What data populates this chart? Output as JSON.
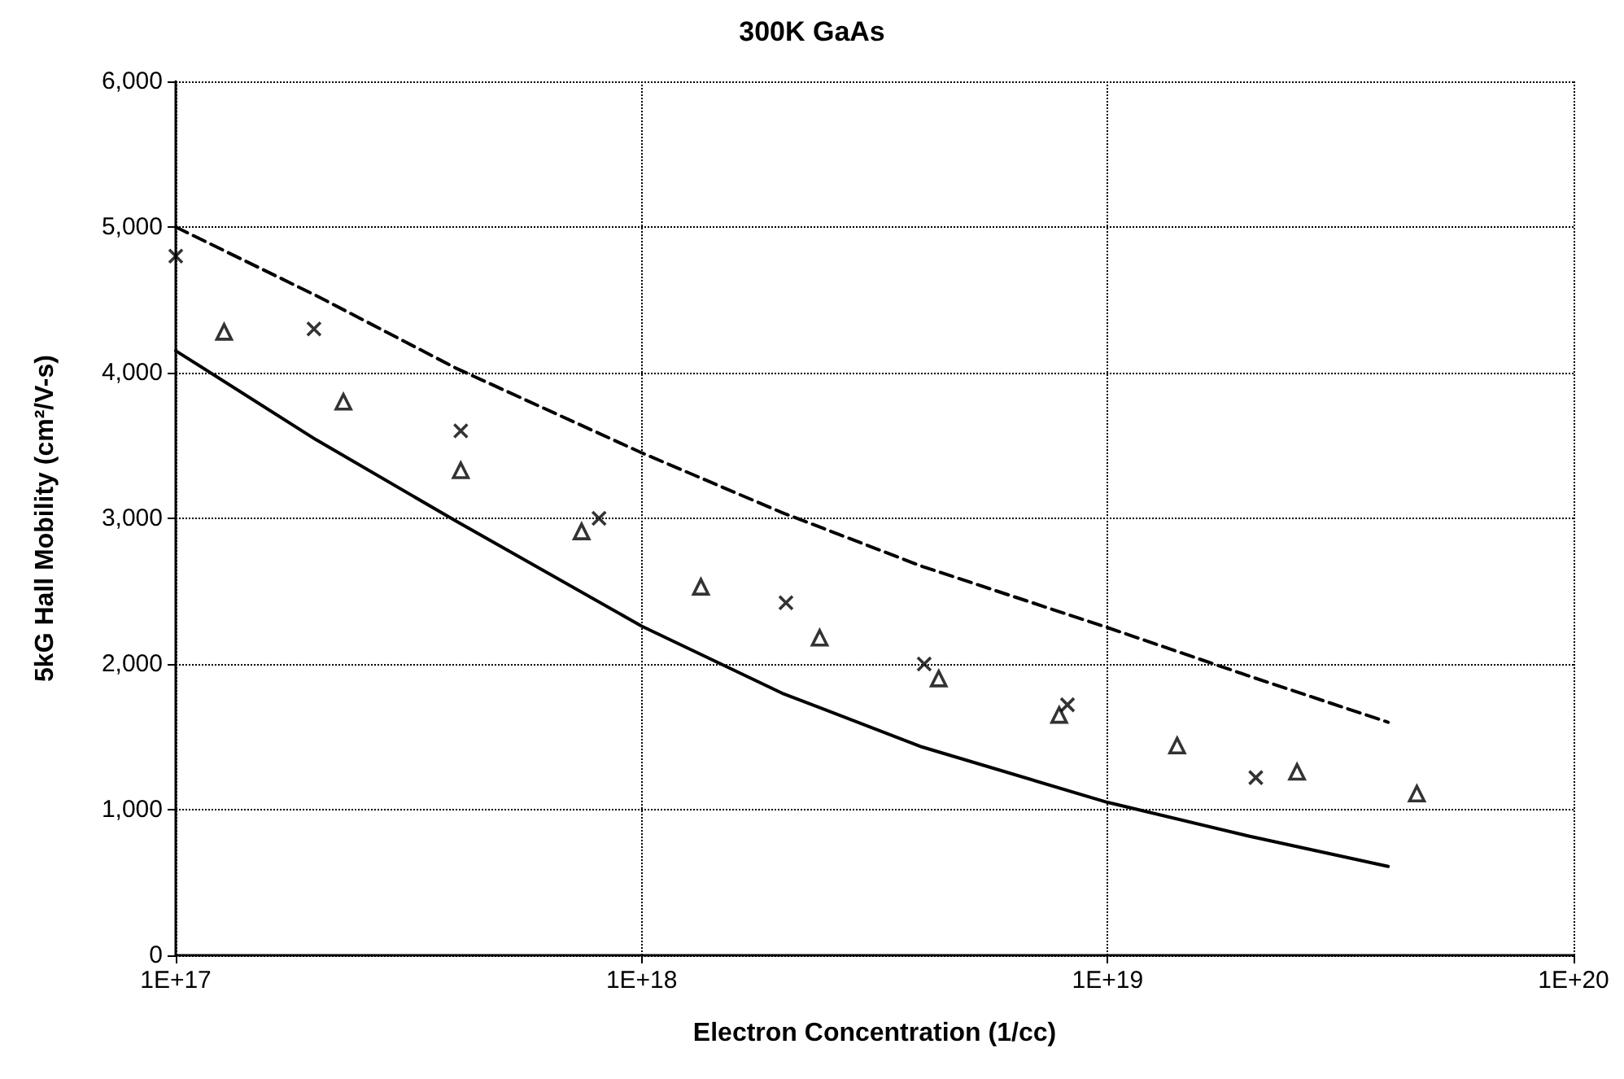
{
  "chart_data": {
    "type": "scatter",
    "title": "300K GaAs",
    "xlabel": "Electron Concentration (1/cc)",
    "ylabel": "5kG Hall Mobility (cm²/V-s)",
    "log": "x",
    "grid": true,
    "xlim": [
      1e+17,
      1e+20
    ],
    "xticks": [
      {
        "value": 1e+17,
        "label": "1E+17"
      },
      {
        "value": 1e+18,
        "label": "1E+18"
      },
      {
        "value": 1e+19,
        "label": "1E+19"
      },
      {
        "value": 1e+20,
        "label": "1E+20"
      }
    ],
    "ylim": [
      0,
      6000
    ],
    "yticks": [
      0,
      {
        "value": 1000,
        "label": "1,000"
      },
      {
        "value": 2000,
        "label": "2,000"
      },
      {
        "value": 3000,
        "label": "3,000"
      },
      {
        "value": 4000,
        "label": "4,000"
      },
      {
        "value": 5000,
        "label": "5,000"
      },
      {
        "value": 6000,
        "label": "6,000"
      }
    ],
    "series": [
      {
        "type": "line",
        "line_style": "dashed",
        "marker": "none",
        "color": "#000000",
        "x": [
          1e+17,
          2e+17,
          4e+17,
          1e+18,
          2e+18,
          4e+18,
          1e+19,
          2e+19,
          4e+19
        ],
        "values": [
          5000,
          4530,
          4030,
          3450,
          3040,
          2670,
          2250,
          1920,
          1600
        ]
      },
      {
        "type": "line",
        "line_style": "solid",
        "marker": "none",
        "color": "#000000",
        "x": [
          1e+17,
          2e+17,
          4e+17,
          1e+18,
          2e+18,
          4e+18,
          1e+19,
          2e+19,
          4e+19
        ],
        "values": [
          4150,
          3540,
          2980,
          2260,
          1800,
          1430,
          1050,
          820,
          610
        ]
      },
      {
        "marker": "triangle",
        "color": "#000000",
        "x": [
          1.27e+17,
          2.29e+17,
          4.09e+17,
          7.43e+17,
          1.34e+18,
          2.41e+18,
          4.34e+18,
          7.87e+18,
          1.41e+19,
          2.55e+19,
          4.61e+19
        ],
        "values": [
          4280,
          3800,
          3330,
          2910,
          2530,
          2180,
          1900,
          1650,
          1440,
          1260,
          1110
        ]
      },
      {
        "marker": "cross",
        "color": "#000000",
        "x": [
          1e+17,
          1.98e+17,
          4.09e+17,
          8.1e+17,
          2.04e+18,
          4.04e+18,
          8.2e+18,
          2.08e+19
        ],
        "values": [
          4800,
          4300,
          3600,
          3000,
          2420,
          2000,
          1720,
          1220
        ]
      }
    ]
  }
}
